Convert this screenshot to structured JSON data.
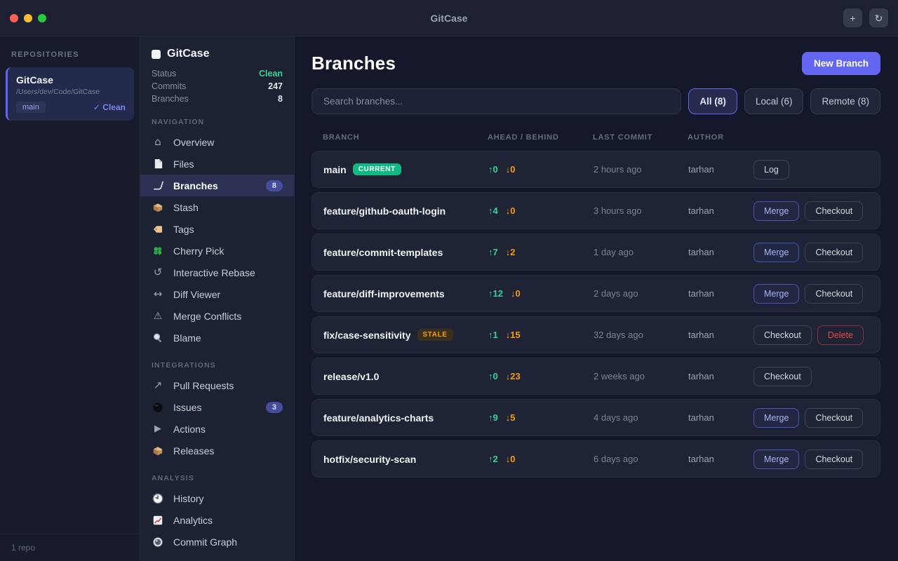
{
  "window": {
    "title": "GitCase",
    "toolbar": {
      "add_label": "+",
      "refresh_label": "↻"
    }
  },
  "repositories_panel": {
    "header": "REPOSITORIES",
    "footer": "1 repo",
    "repo": {
      "name": "GitCase",
      "path": "/Users/dev/Code/GitCase",
      "branch": "main",
      "status": "✓ Clean"
    }
  },
  "nav_panel": {
    "repo_title": "GitCase",
    "stats": [
      {
        "label": "Status",
        "value": "Clean",
        "value_color": "#34d399"
      },
      {
        "label": "Commits",
        "value": "247"
      },
      {
        "label": "Branches",
        "value": "8"
      }
    ],
    "sections": [
      {
        "label": "NAVIGATION",
        "items": [
          {
            "label": "Overview",
            "icon": "house"
          },
          {
            "label": "Files",
            "icon": "file"
          },
          {
            "label": "Branches",
            "icon": "branch",
            "active": true,
            "badge": "8"
          },
          {
            "label": "Stash",
            "icon": "package"
          },
          {
            "label": "Tags",
            "icon": "tag"
          },
          {
            "label": "Cherry Pick",
            "icon": "clover"
          },
          {
            "label": "Interactive Rebase",
            "icon": "undo"
          },
          {
            "label": "Diff Viewer",
            "icon": "left-right-arrow"
          },
          {
            "label": "Merge Conflicts",
            "icon": "warning"
          },
          {
            "label": "Blame",
            "icon": "magnifier"
          }
        ]
      },
      {
        "label": "INTEGRATIONS",
        "items": [
          {
            "label": "Pull Requests",
            "icon": "arrow-up-right"
          },
          {
            "label": "Issues",
            "icon": "black-circle",
            "badge": "3"
          },
          {
            "label": "Actions",
            "icon": "play"
          },
          {
            "label": "Releases",
            "icon": "package"
          }
        ]
      },
      {
        "label": "ANALYSIS",
        "items": [
          {
            "label": "History",
            "icon": "clock"
          },
          {
            "label": "Analytics",
            "icon": "chart"
          },
          {
            "label": "Commit Graph",
            "icon": "radio"
          }
        ]
      }
    ]
  },
  "main": {
    "title": "Branches",
    "new_branch_label": "New Branch",
    "search_placeholder": "Search branches...",
    "filters": [
      {
        "label": "All (8)",
        "active": true
      },
      {
        "label": "Local (6)",
        "active": false
      },
      {
        "label": "Remote (8)",
        "active": false
      }
    ],
    "symbols": {
      "ahead": "↑",
      "behind": "↓"
    },
    "table": {
      "headers": [
        "BRANCH",
        "AHEAD / BEHIND",
        "LAST COMMIT",
        "AUTHOR"
      ],
      "rows": [
        {
          "name": "main",
          "badge": "CURRENT",
          "badge_type": "current",
          "ahead": 0,
          "behind": 0,
          "last_commit": "2 hours ago",
          "author": "tarhan",
          "actions": [
            "Log"
          ]
        },
        {
          "name": "feature/github-oauth-login",
          "ahead": 4,
          "behind": 0,
          "last_commit": "3 hours ago",
          "author": "tarhan",
          "actions": [
            "Merge",
            "Checkout"
          ]
        },
        {
          "name": "feature/commit-templates",
          "ahead": 7,
          "behind": 2,
          "last_commit": "1 day ago",
          "author": "tarhan",
          "actions": [
            "Merge",
            "Checkout"
          ]
        },
        {
          "name": "feature/diff-improvements",
          "ahead": 12,
          "behind": 0,
          "last_commit": "2 days ago",
          "author": "tarhan",
          "actions": [
            "Merge",
            "Checkout"
          ]
        },
        {
          "name": "fix/case-sensitivity",
          "badge": "STALE",
          "badge_type": "stale",
          "ahead": 1,
          "behind": 15,
          "last_commit": "32 days ago",
          "author": "tarhan",
          "actions": [
            "Checkout",
            "Delete"
          ]
        },
        {
          "name": "release/v1.0",
          "ahead": 0,
          "behind": 23,
          "last_commit": "2 weeks ago",
          "author": "tarhan",
          "actions": [
            "Checkout"
          ]
        },
        {
          "name": "feature/analytics-charts",
          "ahead": 9,
          "behind": 5,
          "last_commit": "4 days ago",
          "author": "tarhan",
          "actions": [
            "Merge",
            "Checkout"
          ]
        },
        {
          "name": "hotfix/security-scan",
          "ahead": 2,
          "behind": 0,
          "last_commit": "6 days ago",
          "author": "tarhan",
          "actions": [
            "Merge",
            "Checkout"
          ]
        }
      ]
    }
  },
  "colors": {
    "accent": "#6366f1",
    "ahead_green": "#34d399",
    "behind_amber": "#f59e0b",
    "current_badge_green": "#10b981",
    "delete_red": "#ef4444",
    "clean_green": "#34d399"
  }
}
